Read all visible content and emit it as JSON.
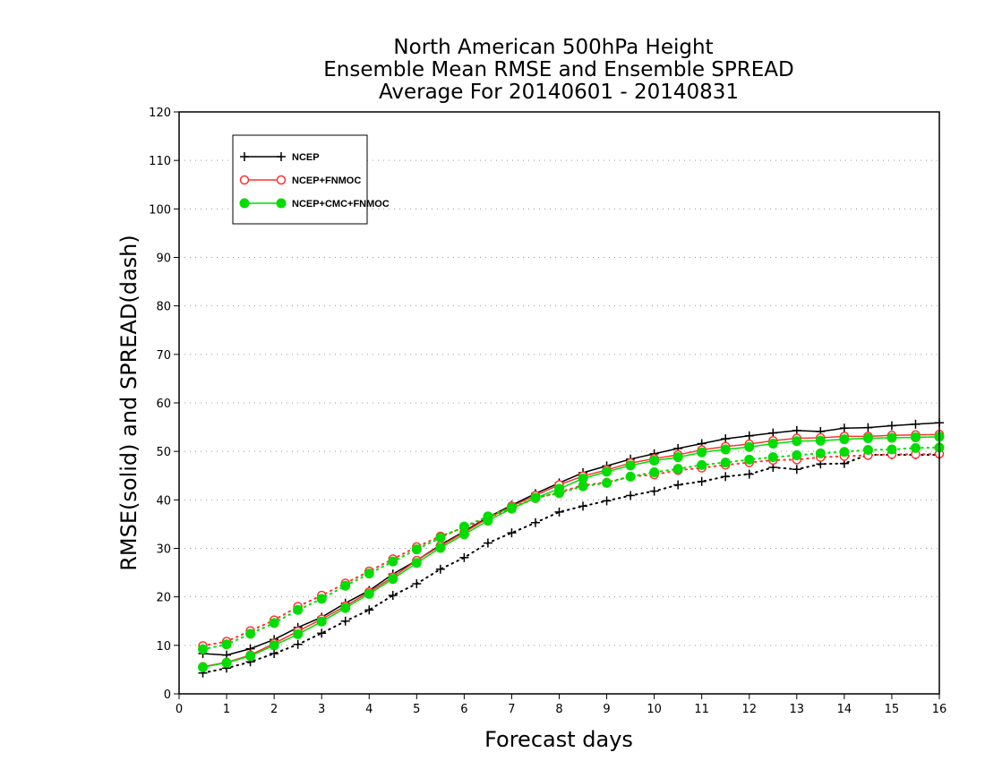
{
  "chart_data": {
    "type": "line",
    "title": [
      "North American 500hPa Height",
      "Ensemble Mean RMSE and Ensemble SPREAD",
      "Average For 20140601 - 20140831"
    ],
    "xlabel": "Forecast days",
    "ylabel": "RMSE(solid) and SPREAD(dash)",
    "xlim": [
      0,
      16
    ],
    "ylim": [
      0,
      120
    ],
    "xticks": [
      0,
      1,
      2,
      3,
      4,
      5,
      6,
      7,
      8,
      9,
      10,
      11,
      12,
      13,
      14,
      15,
      16
    ],
    "yticks": [
      0,
      10,
      20,
      30,
      40,
      50,
      60,
      70,
      80,
      90,
      100,
      110,
      120
    ],
    "grid": true,
    "legend_position": "top-left",
    "x": [
      0.5,
      1,
      1.5,
      2,
      2.5,
      3,
      3.5,
      4,
      4.5,
      5,
      5.5,
      6,
      6.5,
      7,
      7.5,
      8,
      8.5,
      9,
      9.5,
      10,
      10.5,
      11,
      11.5,
      12,
      12.5,
      13,
      13.5,
      14,
      14.5,
      15,
      15.5,
      16
    ],
    "series": [
      {
        "name": "NCEP",
        "color": "#000000",
        "marker": "plus",
        "rmse": [
          8.3,
          8.0,
          9.3,
          11.2,
          13.7,
          15.8,
          18.7,
          21.3,
          24.7,
          27.5,
          30.7,
          33.5,
          36.4,
          38.9,
          41.3,
          43.5,
          45.6,
          47.0,
          48.4,
          49.5,
          50.6,
          51.6,
          52.6,
          53.2,
          53.8,
          54.3,
          54.1,
          54.8,
          54.9,
          55.3,
          55.6,
          55.9
        ],
        "spread": [
          4.3,
          5.3,
          6.6,
          8.3,
          10.2,
          12.5,
          15.0,
          17.3,
          20.3,
          22.7,
          25.7,
          28.1,
          31.1,
          33.2,
          35.3,
          37.5,
          38.7,
          39.8,
          40.9,
          41.8,
          43.1,
          43.8,
          44.8,
          45.3,
          46.7,
          46.3,
          47.4,
          47.5,
          49.3,
          49.3,
          49.3,
          49.3
        ]
      },
      {
        "name": "NCEP+FNMOC",
        "color": "#ff3333",
        "marker": "open-circle",
        "rmse": [
          5.6,
          6.5,
          8.0,
          10.4,
          12.9,
          15.4,
          18.1,
          21.0,
          24.1,
          27.5,
          30.5,
          33.3,
          36.2,
          38.7,
          40.9,
          43.1,
          44.9,
          46.2,
          47.6,
          48.5,
          49.3,
          50.3,
          51.0,
          51.5,
          52.2,
          52.7,
          52.8,
          53.1,
          53.1,
          53.3,
          53.4,
          53.5
        ],
        "spread": [
          9.9,
          10.8,
          13.0,
          15.2,
          18.0,
          20.3,
          22.8,
          25.3,
          27.8,
          30.3,
          32.5,
          34.3,
          36.3,
          38.3,
          40.3,
          41.6,
          43.0,
          43.6,
          44.8,
          45.2,
          46.1,
          46.6,
          47.2,
          47.7,
          48.2,
          48.3,
          48.8,
          49.0,
          49.2,
          49.4,
          49.4,
          49.5
        ]
      },
      {
        "name": "NCEP+CMC+FNMOC",
        "color": "#00dd00",
        "marker": "filled-circle",
        "rmse": [
          5.5,
          6.4,
          7.8,
          10.0,
          12.3,
          14.9,
          17.7,
          20.6,
          23.7,
          27.0,
          30.1,
          32.9,
          35.7,
          38.2,
          40.4,
          42.3,
          44.4,
          45.8,
          47.1,
          48.1,
          48.8,
          49.8,
          50.4,
          50.9,
          51.6,
          52.1,
          52.2,
          52.5,
          52.7,
          52.8,
          52.9,
          53.0
        ],
        "spread": [
          9.2,
          10.2,
          12.4,
          14.6,
          17.3,
          19.6,
          22.3,
          24.8,
          27.3,
          29.8,
          32.2,
          34.5,
          36.6,
          38.4,
          40.4,
          41.4,
          42.8,
          43.5,
          44.8,
          45.7,
          46.4,
          47.2,
          47.7,
          48.3,
          48.8,
          49.2,
          49.6,
          49.9,
          50.3,
          50.4,
          50.7,
          50.8
        ]
      }
    ]
  }
}
